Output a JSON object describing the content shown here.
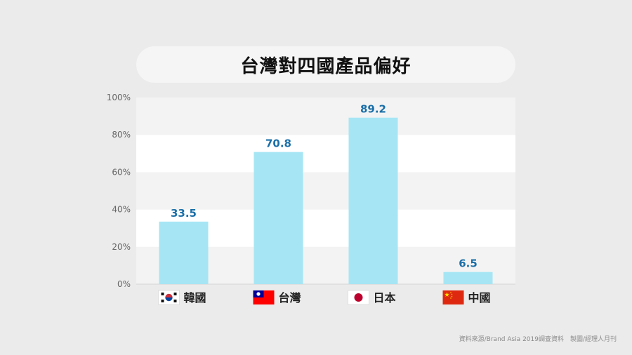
{
  "chart_data": {
    "type": "bar",
    "title": "台灣對四國產品偏好",
    "categories": [
      "韓國",
      "台灣",
      "日本",
      "中國"
    ],
    "values": [
      33.5,
      70.8,
      89.2,
      6.5
    ],
    "value_labels": [
      "33.5",
      "70.8",
      "89.2",
      "6.5"
    ],
    "ylim": [
      0,
      100
    ],
    "yticks": [
      "0%",
      "20%",
      "40%",
      "60%",
      "80%",
      "100%"
    ],
    "ytick_values": [
      0,
      20,
      40,
      60,
      80,
      100
    ],
    "xlabel": "",
    "ylabel": "",
    "grid": "alternating horizontal bands",
    "flags": [
      "korea-flag-icon",
      "taiwan-flag-icon",
      "japan-flag-icon",
      "china-flag-icon"
    ],
    "colors": {
      "bar": "#a6e6f4",
      "value_label": "#1a6fa8",
      "band_light": "#ffffff",
      "band_dark": "#f3f3f3"
    }
  },
  "source": "資料來源/Brand Asia 2019調查資料　製圖/經理人月刊"
}
